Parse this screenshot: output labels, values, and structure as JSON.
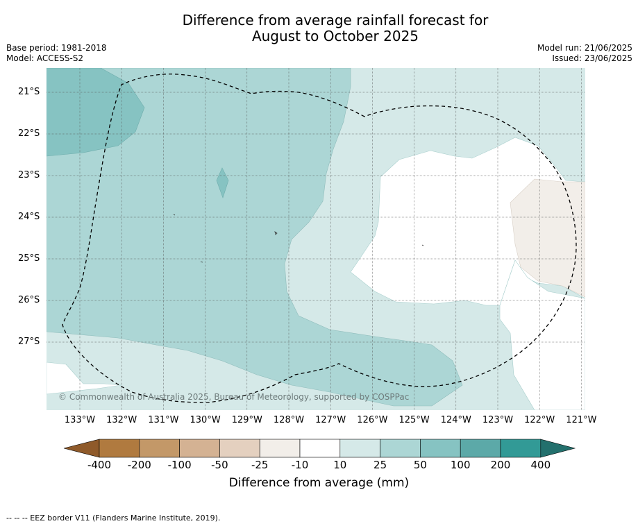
{
  "title_line1": "Difference from average rainfall forecast for",
  "title_line2": "August to October 2025",
  "base_period": "Base period: 1981-2018",
  "model": "Model: ACCESS-S2",
  "model_run": "Model run: 21/06/2025",
  "issued": "Issued: 23/06/2025",
  "copyright": "© Commonwealth of Australia 2025, Bureau of Meteorology, supported by COSPPac",
  "latitudes": [
    "21°S",
    "22°S",
    "23°S",
    "24°S",
    "25°S",
    "26°S",
    "27°S"
  ],
  "longitudes": [
    "133°W",
    "132°W",
    "131°W",
    "130°W",
    "129°W",
    "128°W",
    "127°W",
    "126°W",
    "125°W",
    "124°W",
    "123°W",
    "122°W",
    "121°W"
  ],
  "colorbar": {
    "ticks": [
      "-400",
      "-200",
      "-100",
      "-50",
      "-25",
      "-10",
      "10",
      "25",
      "50",
      "100",
      "200",
      "400"
    ],
    "colors": [
      "#8f5a2a",
      "#b07a3f",
      "#c39868",
      "#d4b293",
      "#e4d0bf",
      "#f2eee9",
      "#ffffff",
      "#d5e9e8",
      "#acd6d5",
      "#86c3c2",
      "#5ca9a8",
      "#329a96",
      "#23706d"
    ],
    "label": "Difference from average (mm)"
  },
  "footnote": "-- -- -- EEZ border V11 (Flanders Marine Institute, 2019)."
}
